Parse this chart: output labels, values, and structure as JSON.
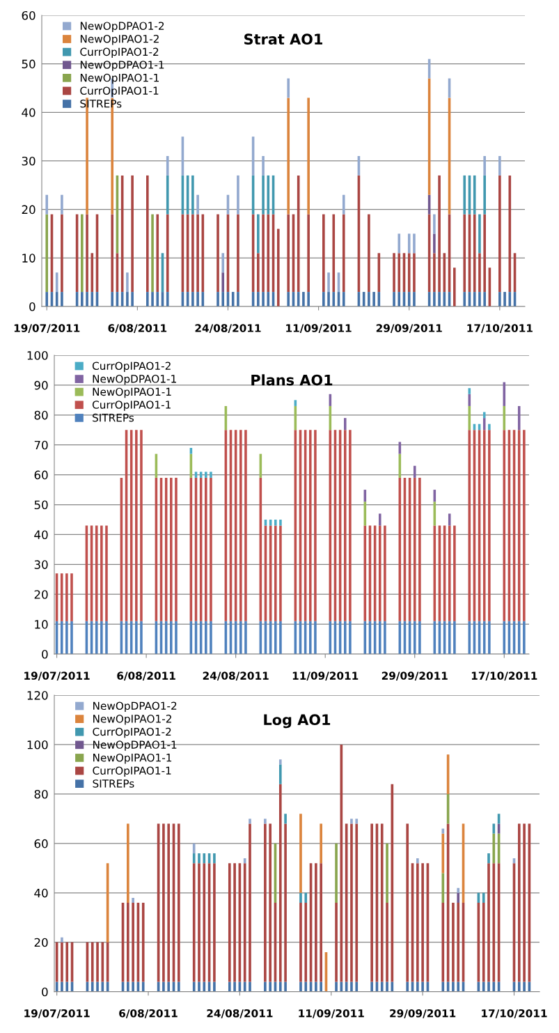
{
  "chart_data": [
    {
      "type": "bar",
      "title": "Strat AO1",
      "stacked": true,
      "grid": "y",
      "legend": "top left",
      "xlim": [
        "2011-07-18",
        "2011-10-22"
      ],
      "ylim": [
        0,
        60
      ],
      "yticks": [
        0,
        10,
        20,
        30,
        40,
        50,
        60
      ],
      "xticks": [
        {
          "value": "2011-07-19",
          "label": "19/07/2011"
        },
        {
          "value": "2011-08-06",
          "label": "6/08/2011"
        },
        {
          "value": "2011-08-24",
          "label": "24/08/2011"
        },
        {
          "value": "2011-09-11",
          "label": "11/09/2011"
        },
        {
          "value": "2011-09-29",
          "label": "29/09/2011"
        },
        {
          "value": "2011-10-17",
          "label": "17/10/2011"
        }
      ],
      "x": [
        "2011-07-19",
        "2011-07-20",
        "2011-07-21",
        "2011-07-22",
        "2011-07-25",
        "2011-07-26",
        "2011-07-27",
        "2011-07-28",
        "2011-07-29",
        "2011-08-01",
        "2011-08-02",
        "2011-08-03",
        "2011-08-04",
        "2011-08-05",
        "2011-08-08",
        "2011-08-09",
        "2011-08-10",
        "2011-08-11",
        "2011-08-12",
        "2011-08-15",
        "2011-08-16",
        "2011-08-17",
        "2011-08-18",
        "2011-08-19",
        "2011-08-22",
        "2011-08-23",
        "2011-08-24",
        "2011-08-25",
        "2011-08-26",
        "2011-08-29",
        "2011-08-30",
        "2011-08-31",
        "2011-09-01",
        "2011-09-02",
        "2011-09-03",
        "2011-09-05",
        "2011-09-06",
        "2011-09-07",
        "2011-09-08",
        "2011-09-09",
        "2011-09-12",
        "2011-09-13",
        "2011-09-14",
        "2011-09-15",
        "2011-09-16",
        "2011-09-19",
        "2011-09-20",
        "2011-09-21",
        "2011-09-22",
        "2011-09-23",
        "2011-09-26",
        "2011-09-27",
        "2011-09-28",
        "2011-09-29",
        "2011-09-30",
        "2011-10-03",
        "2011-10-04",
        "2011-10-05",
        "2011-10-06",
        "2011-10-07",
        "2011-10-08",
        "2011-10-10",
        "2011-10-11",
        "2011-10-12",
        "2011-10-13",
        "2011-10-14",
        "2011-10-15",
        "2011-10-17",
        "2011-10-18",
        "2011-10-19",
        "2011-10-20"
      ],
      "series": [
        {
          "name": "SITREPs",
          "color": "#4572a7",
          "values": [
            3,
            3,
            3,
            3,
            3,
            3,
            3,
            3,
            3,
            3,
            3,
            3,
            3,
            3,
            3,
            3,
            3,
            3,
            3,
            3,
            3,
            3,
            3,
            3,
            3,
            3,
            3,
            3,
            3,
            3,
            3,
            3,
            3,
            3,
            null,
            3,
            3,
            3,
            3,
            3,
            3,
            3,
            3,
            3,
            3,
            3,
            3,
            3,
            3,
            3,
            3,
            3,
            3,
            3,
            3,
            3,
            3,
            3,
            3,
            3,
            null,
            3,
            3,
            3,
            3,
            3,
            null,
            3,
            3,
            3,
            3
          ]
        },
        {
          "name": "CurrOpIPAO1-1",
          "color": "#aa4643",
          "values": [
            null,
            16,
            null,
            16,
            16,
            null,
            16,
            8,
            16,
            16,
            8,
            24,
            null,
            24,
            24,
            null,
            16,
            null,
            16,
            16,
            16,
            16,
            16,
            16,
            16,
            null,
            16,
            null,
            16,
            16,
            8,
            16,
            16,
            16,
            16,
            16,
            16,
            24,
            null,
            16,
            16,
            null,
            16,
            null,
            16,
            24,
            null,
            16,
            null,
            8,
            8,
            8,
            8,
            8,
            8,
            16,
            8,
            24,
            8,
            16,
            8,
            16,
            16,
            16,
            8,
            16,
            8,
            24,
            null,
            24,
            8
          ]
        },
        {
          "name": "NewOpIPAO1-1",
          "color": "#89a54e",
          "values": [
            16,
            null,
            null,
            null,
            null,
            16,
            null,
            null,
            null,
            null,
            16,
            null,
            null,
            null,
            null,
            16,
            null,
            null,
            null,
            null,
            null,
            null,
            null,
            null,
            null,
            null,
            null,
            null,
            null,
            null,
            null,
            null,
            null,
            null,
            null,
            null,
            null,
            null,
            null,
            null,
            null,
            null,
            null,
            null,
            null,
            null,
            null,
            null,
            null,
            null,
            null,
            null,
            null,
            null,
            null,
            null,
            null,
            null,
            null,
            null,
            null,
            null,
            null,
            null,
            null,
            null,
            null,
            null,
            null,
            null,
            null
          ]
        },
        {
          "name": "NewOpDPAO1-1",
          "color": "#71588f",
          "values": [
            null,
            null,
            null,
            null,
            null,
            null,
            null,
            null,
            null,
            null,
            null,
            null,
            null,
            null,
            null,
            null,
            null,
            null,
            null,
            null,
            null,
            null,
            null,
            null,
            null,
            4,
            null,
            null,
            null,
            null,
            null,
            null,
            null,
            null,
            null,
            null,
            null,
            null,
            null,
            null,
            null,
            null,
            null,
            null,
            null,
            null,
            null,
            null,
            null,
            null,
            null,
            null,
            null,
            null,
            null,
            4,
            4,
            null,
            null,
            null,
            null,
            null,
            null,
            null,
            null,
            null,
            null,
            null,
            null,
            null,
            null
          ]
        },
        {
          "name": "CurrOpIPAO1-2",
          "color": "#4198af",
          "values": [
            null,
            null,
            null,
            null,
            null,
            null,
            null,
            null,
            null,
            null,
            null,
            null,
            null,
            null,
            null,
            null,
            null,
            8,
            8,
            8,
            8,
            8,
            null,
            null,
            null,
            null,
            null,
            null,
            null,
            8,
            8,
            8,
            8,
            8,
            null,
            null,
            null,
            null,
            null,
            null,
            null,
            null,
            null,
            null,
            null,
            null,
            null,
            null,
            null,
            null,
            null,
            null,
            null,
            null,
            null,
            null,
            null,
            null,
            null,
            null,
            null,
            8,
            8,
            8,
            8,
            8,
            null,
            null,
            null,
            null,
            null
          ]
        },
        {
          "name": "NewOpIPAO1-2",
          "color": "#db843d",
          "values": [
            null,
            null,
            null,
            null,
            null,
            null,
            24,
            null,
            null,
            24,
            null,
            null,
            null,
            null,
            null,
            null,
            null,
            null,
            null,
            null,
            null,
            null,
            null,
            null,
            null,
            null,
            null,
            null,
            null,
            null,
            null,
            null,
            null,
            null,
            null,
            24,
            null,
            null,
            null,
            24,
            null,
            null,
            null,
            null,
            null,
            null,
            null,
            null,
            null,
            null,
            null,
            null,
            null,
            null,
            null,
            24,
            null,
            null,
            null,
            24,
            null,
            null,
            null,
            null,
            null,
            null,
            null,
            null,
            null,
            null,
            null
          ]
        },
        {
          "name": "NewOpDPAO1-2",
          "color": "#93a9cf",
          "values": [
            4,
            null,
            4,
            4,
            null,
            null,
            null,
            null,
            null,
            4,
            null,
            null,
            4,
            null,
            null,
            null,
            null,
            null,
            4,
            8,
            null,
            null,
            4,
            null,
            null,
            4,
            4,
            null,
            8,
            8,
            null,
            4,
            null,
            null,
            null,
            4,
            null,
            null,
            null,
            null,
            null,
            4,
            null,
            4,
            4,
            4,
            null,
            null,
            null,
            null,
            null,
            4,
            null,
            4,
            4,
            4,
            4,
            null,
            null,
            4,
            null,
            null,
            null,
            null,
            null,
            4,
            null,
            4,
            null,
            null,
            null
          ]
        }
      ]
    },
    {
      "type": "bar",
      "title": "Plans AO1",
      "stacked": true,
      "grid": "y",
      "legend": "top left",
      "xlim": [
        "2011-07-18T12:00",
        "2011-10-22"
      ],
      "ylim": [
        0,
        100
      ],
      "yticks": [
        0,
        10,
        20,
        30,
        40,
        50,
        60,
        70,
        80,
        90,
        100
      ],
      "xticks": [
        {
          "value": "2011-07-19",
          "label": "19/07/2011"
        },
        {
          "value": "2011-08-06",
          "label": "6/08/2011"
        },
        {
          "value": "2011-08-24",
          "label": "24/08/2011"
        },
        {
          "value": "2011-09-11",
          "label": "11/09/2011"
        },
        {
          "value": "2011-09-29",
          "label": "29/09/2011"
        },
        {
          "value": "2011-10-17",
          "label": "17/10/2011"
        }
      ],
      "x": [
        "2011-07-19",
        "2011-07-20",
        "2011-07-21",
        "2011-07-22",
        "2011-07-25",
        "2011-07-26",
        "2011-07-27",
        "2011-07-28",
        "2011-07-29",
        "2011-08-01",
        "2011-08-02",
        "2011-08-03",
        "2011-08-04",
        "2011-08-05",
        "2011-08-08",
        "2011-08-09",
        "2011-08-10",
        "2011-08-11",
        "2011-08-12",
        "2011-08-15",
        "2011-08-16",
        "2011-08-17",
        "2011-08-18",
        "2011-08-19",
        "2011-08-22",
        "2011-08-23",
        "2011-08-24",
        "2011-08-25",
        "2011-08-26",
        "2011-08-29",
        "2011-08-30",
        "2011-08-31",
        "2011-09-01",
        "2011-09-02",
        "2011-09-05",
        "2011-09-06",
        "2011-09-07",
        "2011-09-08",
        "2011-09-09",
        "2011-09-12",
        "2011-09-13",
        "2011-09-14",
        "2011-09-15",
        "2011-09-16",
        "2011-09-19",
        "2011-09-20",
        "2011-09-21",
        "2011-09-22",
        "2011-09-23",
        "2011-09-26",
        "2011-09-27",
        "2011-09-28",
        "2011-09-29",
        "2011-09-30",
        "2011-10-03",
        "2011-10-04",
        "2011-10-05",
        "2011-10-06",
        "2011-10-07",
        "2011-10-10",
        "2011-10-11",
        "2011-10-12",
        "2011-10-13",
        "2011-10-14",
        "2011-10-17",
        "2011-10-18",
        "2011-10-19",
        "2011-10-20",
        "2011-10-21"
      ],
      "series": [
        {
          "name": "SITREPs",
          "color": "#4f81bd",
          "values": [
            11,
            11,
            11,
            11,
            11,
            11,
            11,
            11,
            11,
            11,
            11,
            11,
            11,
            11,
            11,
            11,
            11,
            11,
            11,
            11,
            11,
            11,
            11,
            11,
            11,
            11,
            11,
            11,
            11,
            11,
            11,
            11,
            11,
            11,
            11,
            11,
            11,
            11,
            11,
            11,
            11,
            11,
            11,
            11,
            11,
            11,
            11,
            11,
            11,
            11,
            11,
            11,
            11,
            11,
            11,
            11,
            11,
            11,
            11,
            11,
            11,
            11,
            11,
            11,
            11,
            11,
            11,
            11,
            11
          ]
        },
        {
          "name": "CurrOpIPAO1-1",
          "color": "#c0504d",
          "values": [
            16,
            16,
            16,
            16,
            32,
            32,
            32,
            32,
            32,
            48,
            64,
            64,
            64,
            64,
            48,
            48,
            48,
            48,
            48,
            48,
            48,
            48,
            48,
            48,
            64,
            64,
            64,
            64,
            64,
            48,
            32,
            32,
            32,
            32,
            64,
            64,
            64,
            64,
            64,
            64,
            64,
            64,
            64,
            64,
            32,
            32,
            32,
            32,
            32,
            48,
            48,
            48,
            48,
            48,
            32,
            32,
            32,
            32,
            32,
            64,
            64,
            64,
            64,
            64,
            64,
            64,
            64,
            64,
            64
          ]
        },
        {
          "name": "NewOpIPAO1-1",
          "color": "#9bbb59",
          "values": [
            null,
            null,
            null,
            null,
            null,
            null,
            null,
            null,
            null,
            null,
            null,
            null,
            null,
            null,
            8,
            null,
            null,
            null,
            null,
            8,
            null,
            null,
            null,
            null,
            8,
            null,
            null,
            null,
            null,
            8,
            null,
            null,
            null,
            null,
            8,
            null,
            null,
            null,
            null,
            8,
            null,
            null,
            null,
            null,
            8,
            null,
            null,
            null,
            null,
            8,
            null,
            null,
            null,
            null,
            8,
            null,
            null,
            null,
            null,
            8,
            null,
            null,
            null,
            null,
            8,
            null,
            null,
            null,
            null
          ]
        },
        {
          "name": "NewOpDPAO1-1",
          "color": "#8064a2",
          "values": [
            null,
            null,
            null,
            null,
            null,
            null,
            null,
            null,
            null,
            null,
            null,
            null,
            null,
            null,
            null,
            null,
            null,
            null,
            null,
            null,
            null,
            null,
            null,
            null,
            null,
            null,
            null,
            null,
            null,
            null,
            null,
            null,
            null,
            null,
            null,
            null,
            null,
            null,
            null,
            4,
            null,
            null,
            4,
            null,
            4,
            null,
            null,
            4,
            null,
            4,
            null,
            null,
            4,
            null,
            4,
            null,
            null,
            4,
            null,
            4,
            null,
            null,
            4,
            null,
            8,
            null,
            null,
            8,
            null
          ]
        },
        {
          "name": "CurrOpIPAO1-2",
          "color": "#4bacc6",
          "values": [
            null,
            null,
            null,
            null,
            null,
            null,
            null,
            null,
            null,
            null,
            null,
            null,
            null,
            null,
            null,
            null,
            null,
            null,
            null,
            2,
            2,
            2,
            2,
            2,
            null,
            null,
            null,
            null,
            null,
            null,
            2,
            2,
            2,
            2,
            2,
            null,
            null,
            null,
            null,
            null,
            null,
            null,
            null,
            null,
            null,
            null,
            null,
            null,
            null,
            null,
            null,
            null,
            null,
            null,
            null,
            null,
            null,
            null,
            null,
            2,
            2,
            2,
            2,
            2,
            null,
            null,
            null,
            null,
            null
          ]
        }
      ]
    },
    {
      "type": "bar",
      "title": "Log AO1",
      "stacked": true,
      "grid": "y",
      "legend": "top left",
      "xlim": [
        "2011-07-18T12:00",
        "2011-10-22"
      ],
      "ylim": [
        0,
        120
      ],
      "yticks": [
        0,
        20,
        40,
        60,
        80,
        100,
        120
      ],
      "xticks": [
        {
          "value": "2011-07-19",
          "label": "19/07/2011"
        },
        {
          "value": "2011-08-06",
          "label": "6/08/2011"
        },
        {
          "value": "2011-08-24",
          "label": "24/08/2011"
        },
        {
          "value": "2011-09-11",
          "label": "11/09/2011"
        },
        {
          "value": "2011-09-29",
          "label": "29/09/2011"
        },
        {
          "value": "2011-10-17",
          "label": "17/10/2011"
        }
      ],
      "x": [
        "2011-07-19",
        "2011-07-20",
        "2011-07-21",
        "2011-07-22",
        "2011-07-25",
        "2011-07-26",
        "2011-07-27",
        "2011-07-28",
        "2011-07-29",
        "2011-08-01",
        "2011-08-02",
        "2011-08-03",
        "2011-08-04",
        "2011-08-05",
        "2011-08-08",
        "2011-08-09",
        "2011-08-10",
        "2011-08-11",
        "2011-08-12",
        "2011-08-15",
        "2011-08-16",
        "2011-08-17",
        "2011-08-18",
        "2011-08-19",
        "2011-08-22",
        "2011-08-23",
        "2011-08-24",
        "2011-08-25",
        "2011-08-26",
        "2011-08-29",
        "2011-08-30",
        "2011-08-31",
        "2011-09-01",
        "2011-09-02",
        "2011-09-05",
        "2011-09-06",
        "2011-09-07",
        "2011-09-08",
        "2011-09-09",
        "2011-09-10",
        "2011-09-12",
        "2011-09-13",
        "2011-09-14",
        "2011-09-15",
        "2011-09-16",
        "2011-09-19",
        "2011-09-20",
        "2011-09-21",
        "2011-09-22",
        "2011-09-23",
        "2011-09-26",
        "2011-09-27",
        "2011-09-28",
        "2011-09-29",
        "2011-09-30",
        "2011-10-03",
        "2011-10-04",
        "2011-10-05",
        "2011-10-06",
        "2011-10-07",
        "2011-10-10",
        "2011-10-11",
        "2011-10-12",
        "2011-10-13",
        "2011-10-14",
        "2011-10-17",
        "2011-10-18",
        "2011-10-19",
        "2011-10-20"
      ],
      "series": [
        {
          "name": "SITREPs",
          "color": "#4572a7",
          "values": [
            4,
            4,
            4,
            4,
            4,
            4,
            4,
            4,
            4,
            4,
            4,
            4,
            4,
            4,
            4,
            4,
            4,
            4,
            4,
            4,
            4,
            4,
            4,
            4,
            4,
            4,
            4,
            4,
            4,
            4,
            4,
            4,
            4,
            4,
            4,
            4,
            4,
            4,
            4,
            null,
            4,
            4,
            4,
            4,
            4,
            4,
            4,
            4,
            4,
            4,
            4,
            4,
            4,
            4,
            4,
            4,
            4,
            4,
            4,
            4,
            4,
            4,
            4,
            4,
            4,
            4,
            4,
            4,
            4
          ]
        },
        {
          "name": "CurrOpIPAO1-1",
          "color": "#aa4643",
          "values": [
            16,
            16,
            16,
            16,
            16,
            16,
            16,
            16,
            16,
            32,
            32,
            32,
            32,
            32,
            64,
            64,
            64,
            64,
            64,
            48,
            48,
            48,
            48,
            48,
            48,
            48,
            48,
            48,
            64,
            64,
            64,
            32,
            80,
            64,
            32,
            32,
            48,
            48,
            48,
            null,
            32,
            96,
            64,
            64,
            64,
            64,
            64,
            64,
            32,
            80,
            64,
            48,
            48,
            48,
            48,
            32,
            64,
            32,
            32,
            32,
            32,
            32,
            48,
            48,
            48,
            48,
            64,
            64,
            64
          ]
        },
        {
          "name": "NewOpIPAO1-1",
          "color": "#89a54e",
          "values": [
            null,
            null,
            null,
            null,
            null,
            null,
            null,
            null,
            null,
            null,
            null,
            null,
            null,
            null,
            null,
            null,
            null,
            null,
            null,
            null,
            null,
            null,
            null,
            null,
            null,
            null,
            null,
            null,
            null,
            null,
            null,
            24,
            null,
            null,
            null,
            null,
            null,
            null,
            null,
            null,
            24,
            null,
            null,
            null,
            null,
            null,
            null,
            null,
            24,
            null,
            null,
            null,
            null,
            null,
            null,
            12,
            12,
            null,
            null,
            null,
            null,
            null,
            null,
            12,
            12,
            null,
            null,
            null,
            null
          ]
        },
        {
          "name": "NewOpDPAO1-1",
          "color": "#71588f",
          "values": [
            null,
            null,
            null,
            null,
            null,
            null,
            null,
            null,
            null,
            null,
            null,
            null,
            null,
            null,
            null,
            null,
            null,
            null,
            null,
            null,
            null,
            null,
            null,
            null,
            null,
            null,
            null,
            null,
            null,
            null,
            null,
            null,
            null,
            null,
            null,
            null,
            null,
            null,
            null,
            null,
            null,
            null,
            null,
            null,
            null,
            null,
            null,
            null,
            null,
            null,
            null,
            null,
            null,
            null,
            null,
            null,
            null,
            null,
            4,
            null,
            null,
            null,
            null,
            null,
            4,
            null,
            null,
            null,
            null
          ]
        },
        {
          "name": "CurrOpIPAO1-2",
          "color": "#4198af",
          "values": [
            null,
            null,
            null,
            null,
            null,
            null,
            null,
            null,
            null,
            null,
            null,
            null,
            null,
            null,
            null,
            null,
            null,
            null,
            null,
            4,
            4,
            4,
            4,
            4,
            null,
            null,
            null,
            null,
            null,
            null,
            null,
            null,
            8,
            4,
            4,
            4,
            null,
            null,
            null,
            null,
            null,
            null,
            null,
            null,
            null,
            null,
            null,
            null,
            null,
            null,
            null,
            null,
            null,
            null,
            null,
            null,
            null,
            null,
            null,
            null,
            4,
            4,
            4,
            4,
            4,
            null,
            null,
            null,
            null
          ]
        },
        {
          "name": "NewOpIPAO1-2",
          "color": "#db843d",
          "values": [
            null,
            null,
            null,
            null,
            null,
            null,
            null,
            null,
            32,
            null,
            32,
            null,
            null,
            null,
            null,
            null,
            null,
            null,
            null,
            null,
            null,
            null,
            null,
            null,
            null,
            null,
            null,
            null,
            null,
            null,
            null,
            null,
            null,
            null,
            32,
            null,
            null,
            null,
            16,
            16,
            null,
            null,
            null,
            null,
            null,
            null,
            null,
            null,
            null,
            null,
            null,
            null,
            null,
            null,
            null,
            16,
            16,
            null,
            null,
            32,
            null,
            null,
            null,
            null,
            null,
            null,
            null,
            null,
            null
          ]
        },
        {
          "name": "NewOpDPAO1-2",
          "color": "#93a9cf",
          "values": [
            null,
            2,
            null,
            null,
            null,
            null,
            null,
            null,
            null,
            null,
            null,
            2,
            null,
            null,
            null,
            null,
            null,
            null,
            null,
            4,
            null,
            null,
            null,
            null,
            null,
            null,
            null,
            2,
            2,
            2,
            null,
            null,
            2,
            null,
            null,
            null,
            null,
            null,
            null,
            null,
            null,
            null,
            null,
            2,
            2,
            null,
            null,
            null,
            null,
            null,
            null,
            null,
            2,
            null,
            null,
            2,
            null,
            null,
            2,
            null,
            null,
            null,
            null,
            null,
            null,
            2,
            null,
            null,
            null
          ]
        }
      ]
    }
  ]
}
